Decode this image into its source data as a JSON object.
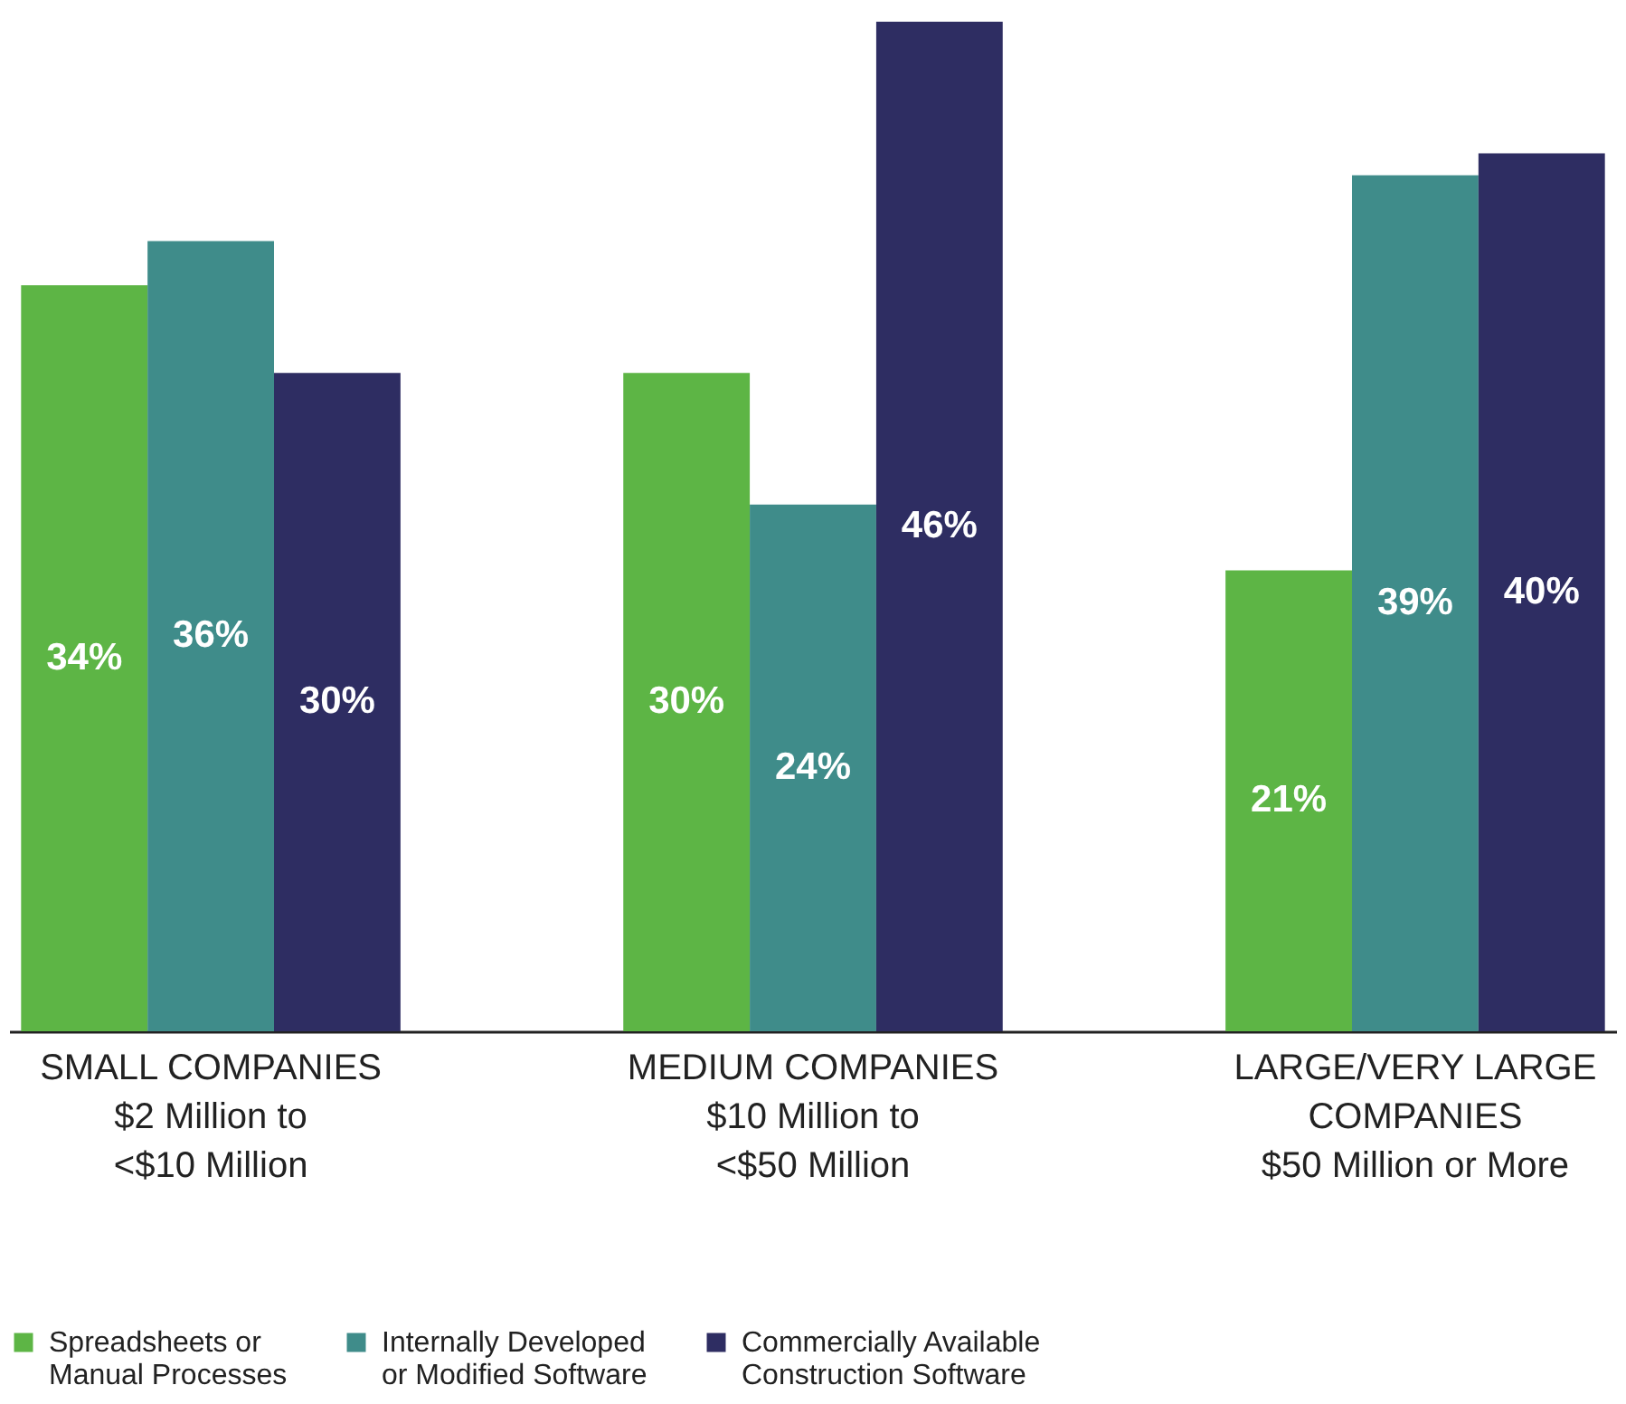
{
  "chart_data": {
    "type": "bar",
    "categories": [
      "SMALL COMPANIES\n$2 Million to\n<$10 Million",
      "MEDIUM COMPANIES\n$10 Million to\n<$50 Million",
      "LARGE/VERY LARGE\nCOMPANIES\n$50 Million or More"
    ],
    "series": [
      {
        "name": "Spreadsheets or\nManual Processes",
        "color": "#5db545",
        "values": [
          34,
          30,
          21
        ],
        "value_labels": [
          "34%",
          "30%",
          "21%"
        ]
      },
      {
        "name": "Internally Developed\nor Modified Software",
        "color": "#3f8c8a",
        "values": [
          36,
          24,
          39
        ],
        "value_labels": [
          "36%",
          "24%",
          "39%"
        ]
      },
      {
        "name": "Commercially Available\nConstruction Software",
        "color": "#2e2d62",
        "values": [
          30,
          46,
          40
        ],
        "value_labels": [
          "30%",
          "46%",
          "40%"
        ]
      }
    ],
    "legend": "bottom",
    "grid": false
  }
}
